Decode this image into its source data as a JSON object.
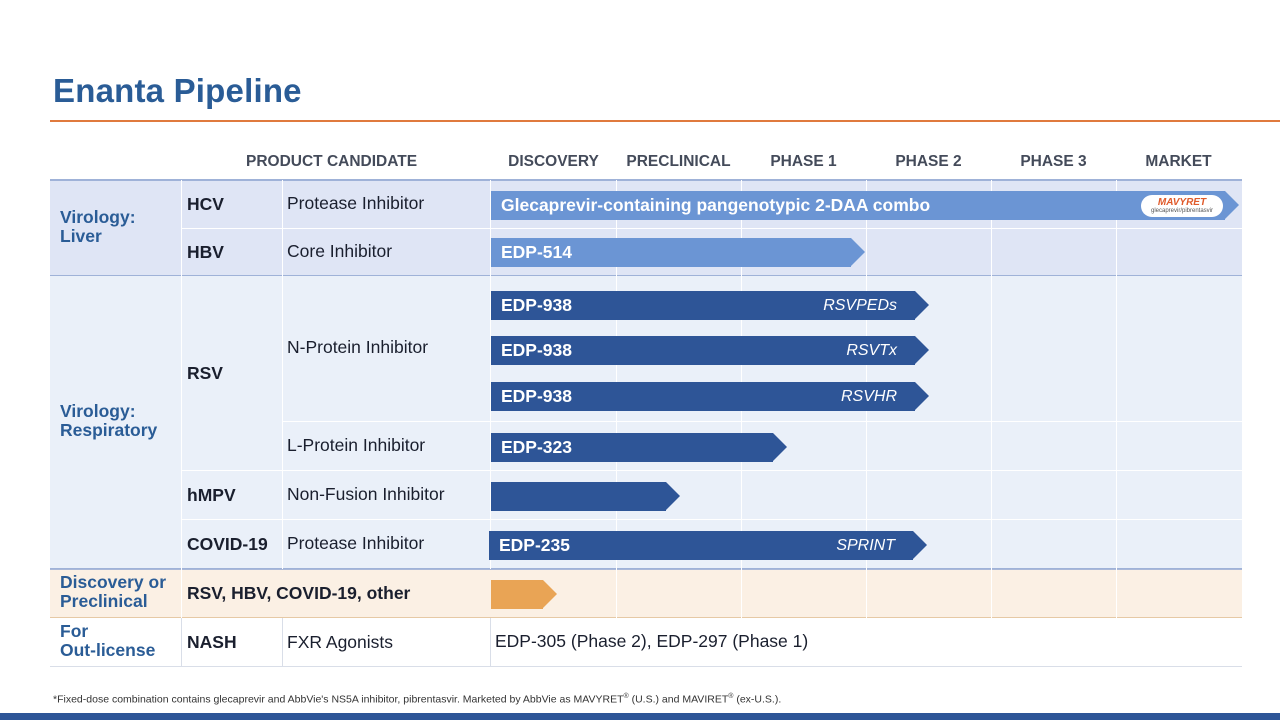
{
  "title": "Enanta Pipeline",
  "headers": {
    "product_candidate": "PRODUCT CANDIDATE",
    "discovery": "DISCOVERY",
    "preclinical": "PRECLINICAL",
    "phase1": "PHASE 1",
    "phase2": "PHASE 2",
    "phase3": "PHASE 3",
    "market": "MARKET"
  },
  "categories": {
    "liver": "Virology:\nLiver",
    "respiratory": "Virology:\nRespiratory",
    "discovery": "Discovery or\nPreclinical",
    "outlicense": "For\nOut-license"
  },
  "rows": {
    "hcv": {
      "target": "HCV",
      "mechanism": "Protease Inhibitor",
      "bar": "Glecaprevir-containing pangenotypic 2-DAA combo",
      "stage": "MARKET"
    },
    "hbv": {
      "target": "HBV",
      "mechanism": "Core Inhibitor",
      "bar": "EDP-514",
      "stage": "PHASE 1"
    },
    "rsv": {
      "target": "RSV",
      "mechanism_n": "N-Protein Inhibitor",
      "mechanism_l": "L-Protein Inhibitor"
    },
    "rsv1": {
      "bar": "EDP-938",
      "study": "RSVPEDs",
      "stage": "PHASE 2"
    },
    "rsv2": {
      "bar": "EDP-938",
      "study": "RSVTx",
      "stage": "PHASE 2"
    },
    "rsv3": {
      "bar": "EDP-938",
      "study": "RSVHR",
      "stage": "PHASE 2"
    },
    "rsv4": {
      "bar": "EDP-323",
      "stage": "PHASE 1"
    },
    "hmpv": {
      "target": "hMPV",
      "mechanism": "Non-Fusion Inhibitor",
      "bar": "",
      "stage": "PRECLINICAL"
    },
    "covid": {
      "target": "COVID-19",
      "mechanism": "Protease Inhibitor",
      "bar": "EDP-235",
      "study": "SPRINT",
      "stage": "PHASE 2"
    },
    "disc": {
      "target": "RSV, HBV, COVID-19, other",
      "stage": "DISCOVERY"
    },
    "nash": {
      "target": "NASH",
      "mechanism": "FXR Agonists",
      "text": "EDP-305 (Phase 2), EDP-297 (Phase 1)"
    }
  },
  "logo": {
    "brand": "MAVYRET",
    "sub": "glecaprevir/pibrentasvir"
  },
  "footnote": {
    "main": "*Fixed-dose combination contains glecaprevir and AbbVie's NS5A inhibitor, pibrentasvir. Marketed by AbbVie as MAVYRET",
    "reg": "®",
    "mid": "  (U.S.) and MAVIRET",
    "end": "  (ex-U.S.)."
  },
  "colors": {
    "title": "#2a5c96",
    "accent_rule": "#e07a3e",
    "bar_dark": "#2e5597",
    "bar_mid": "#6b95d4",
    "bar_orange": "#e9a455"
  }
}
